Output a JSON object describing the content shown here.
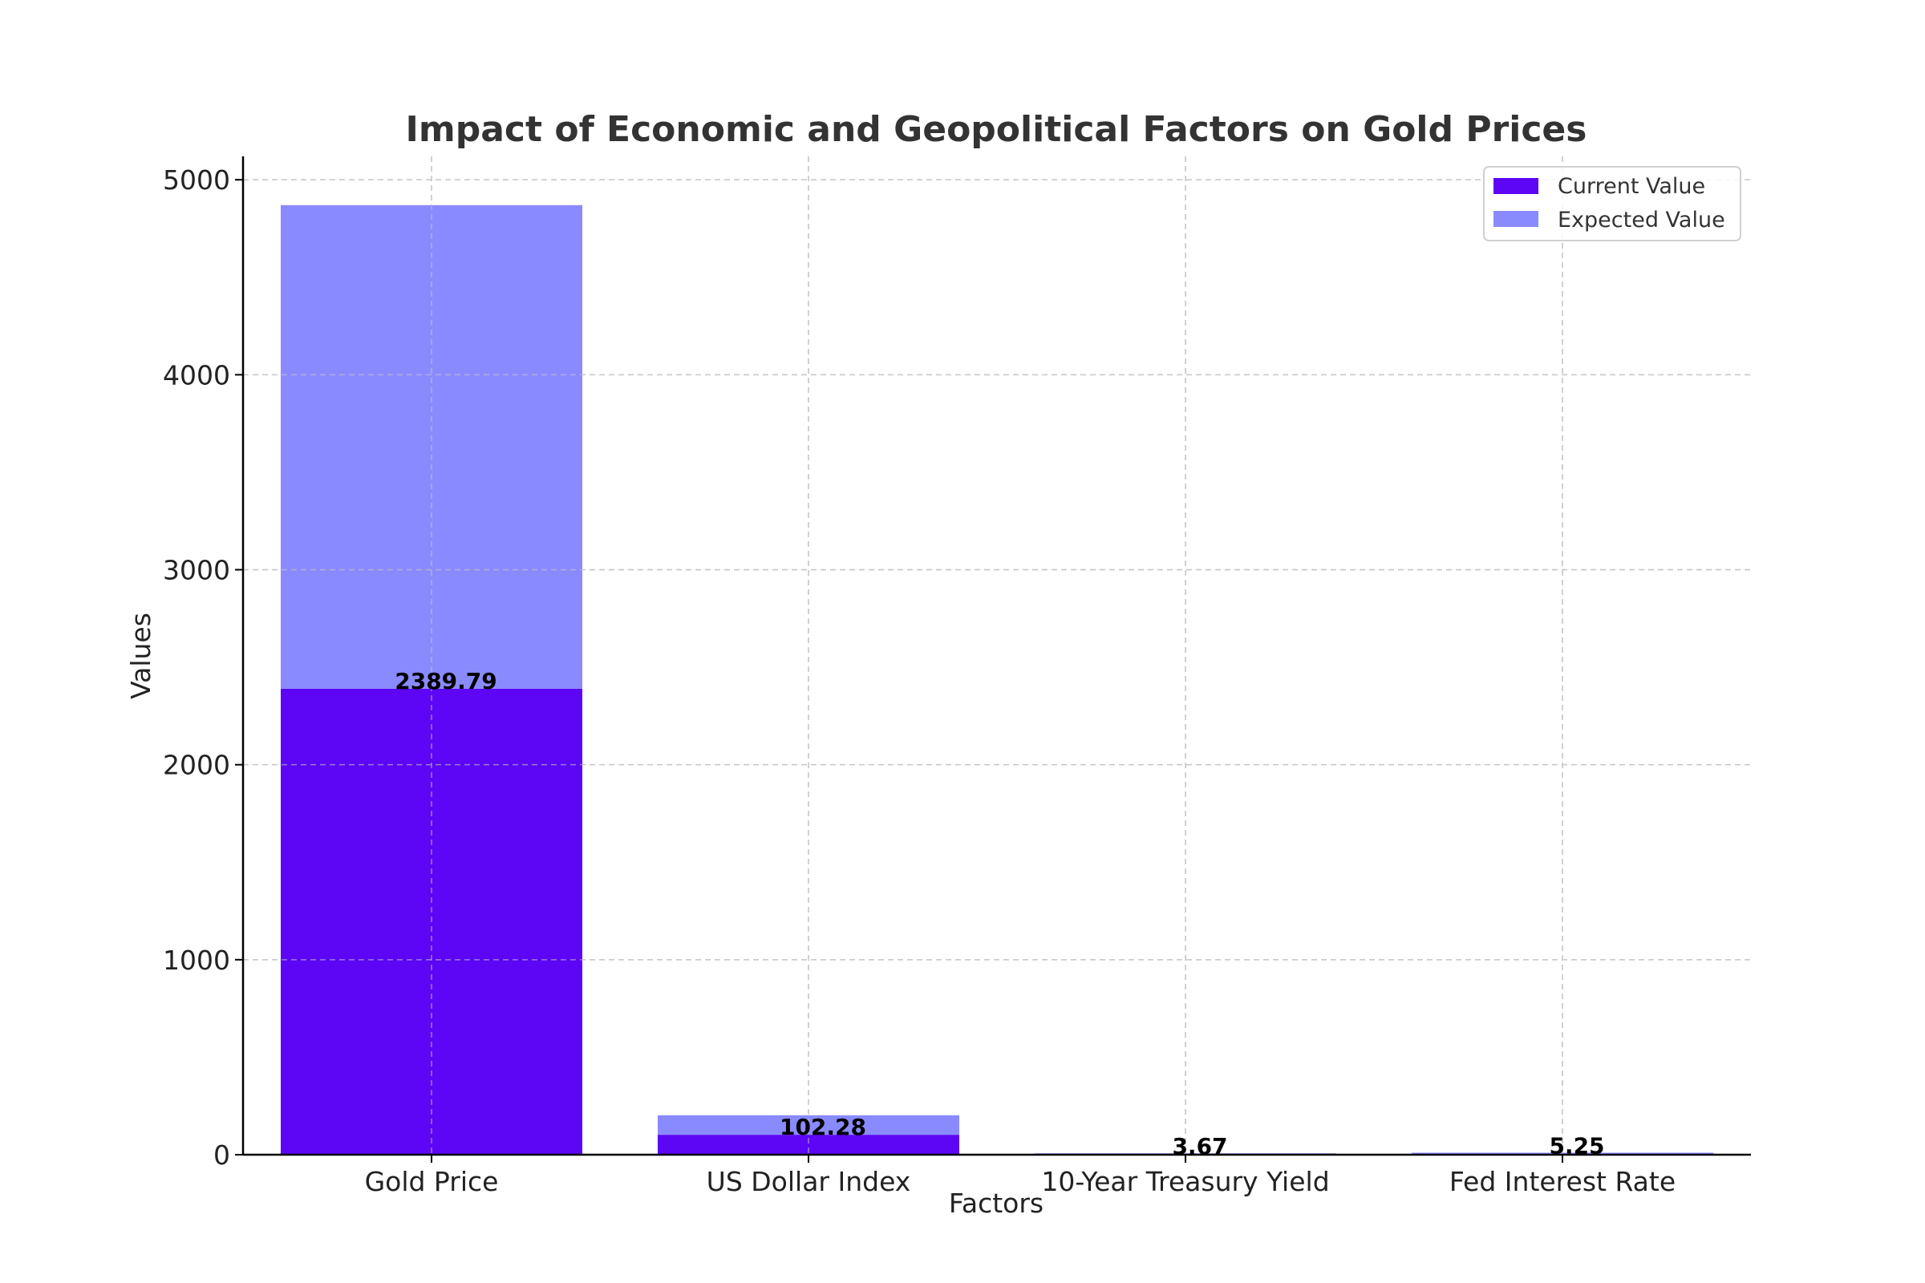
{
  "chart_data": {
    "type": "bar",
    "title": "Impact of Economic and Geopolitical Factors on Gold Prices",
    "xlabel": "Factors",
    "ylabel": "Values",
    "categories": [
      "Gold Price",
      "US Dollar Index",
      "10-Year Treasury Yield",
      "Fed Interest Rate"
    ],
    "series": [
      {
        "name": "Current Value",
        "values": [
          2389.79,
          102.28,
          3.67,
          5.25
        ],
        "color": "#5c06f5"
      },
      {
        "name": "Expected Value",
        "values": [
          2480,
          100,
          3.5,
          5.0
        ],
        "color": "#8a8aff"
      }
    ],
    "stacked": true,
    "data_labels": [
      "2389.79",
      "102.28",
      "3.67",
      "5.25"
    ],
    "ylim": [
      0,
      5120
    ],
    "yticks": [
      0,
      1000,
      2000,
      3000,
      4000,
      5000
    ],
    "grid": true,
    "legend_position": "top-right"
  }
}
